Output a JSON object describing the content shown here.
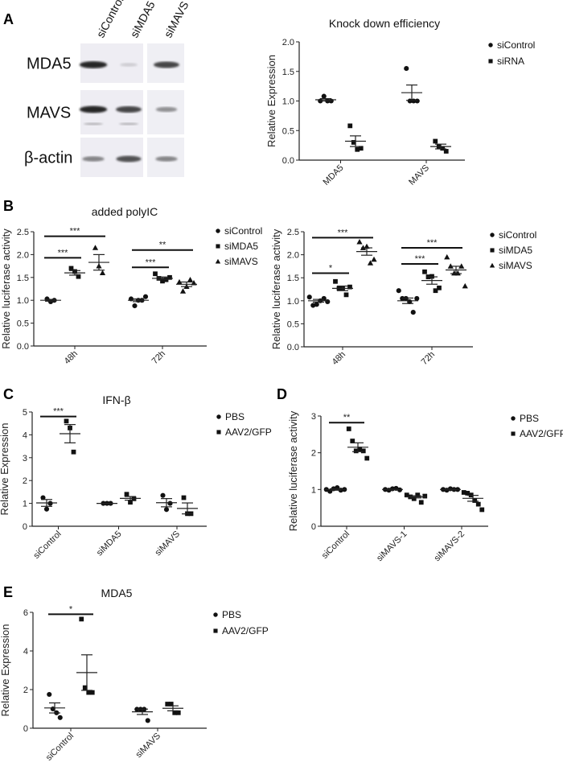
{
  "panels": [
    "A",
    "B",
    "C",
    "D",
    "E"
  ],
  "blot": {
    "lanes": [
      "siControl",
      "siMDA5",
      "siMAVS"
    ],
    "rows": [
      {
        "label": "MDA5",
        "intensity": [
          0.95,
          0.15,
          0.8
        ]
      },
      {
        "label": "MAVS",
        "intensity": [
          0.95,
          0.8,
          0.45
        ]
      },
      {
        "label": "β-actin",
        "intensity": [
          0.5,
          0.75,
          0.5
        ]
      }
    ]
  },
  "colors": {
    "marker": "#111111",
    "axis": "#222222",
    "band": "#1a1a1a"
  },
  "chart_data": [
    {
      "type": "scatter",
      "title": "Knock down efficiency",
      "xlabel": "",
      "ylabel": "Relative Expression",
      "ylim": [
        0,
        2
      ],
      "yticks": [
        "0.0",
        "0.5",
        "1.0",
        "1.5",
        "2.0"
      ],
      "ytick_values": [
        0,
        0.5,
        1,
        1.5,
        2
      ],
      "categories": [
        "MDA5",
        "MAVS"
      ],
      "legend": "right",
      "series": [
        {
          "name": "siControl",
          "marker": "circle",
          "values": [
            [
              1.0,
              1.08,
              1.0,
              1.0
            ],
            [
              1.55,
              1.0,
              1.0,
              1.0
            ]
          ],
          "mean": [
            1.02,
            1.14
          ],
          "sem": [
            0.02,
            0.13
          ]
        },
        {
          "name": "siRNA",
          "marker": "square",
          "values": [
            [
              0.58,
              0.3,
              0.18,
              0.2
            ],
            [
              0.32,
              0.23,
              0.2,
              0.15
            ]
          ],
          "mean": [
            0.32,
            0.23
          ],
          "sem": [
            0.09,
            0.04
          ]
        }
      ],
      "significance": []
    },
    {
      "type": "scatter",
      "title": "added polyIC",
      "xlabel": "",
      "ylabel": "Relative luciferase activity",
      "ylim": [
        0,
        2.5
      ],
      "yticks": [
        "0.0",
        "0.5",
        "1.0",
        "1.5",
        "2.0",
        "2.5"
      ],
      "ytick_values": [
        0,
        0.5,
        1,
        1.5,
        2,
        2.5
      ],
      "categories": [
        "48h",
        "72h"
      ],
      "legend": "right",
      "series": [
        {
          "name": "siControl",
          "marker": "circle",
          "values": [
            [
              1.03,
              0.97,
              1.0
            ],
            [
              1.03,
              0.88,
              1.0,
              1.0,
              1.08
            ]
          ],
          "mean": [
            1.0,
            1.0
          ],
          "sem": [
            0.02,
            0.03
          ]
        },
        {
          "name": "siMDA5",
          "marker": "square",
          "values": [
            [
              1.7,
              1.63,
              1.52
            ],
            [
              1.58,
              1.48,
              1.42,
              1.45,
              1.5
            ]
          ],
          "mean": [
            1.6,
            1.48
          ],
          "sem": [
            0.05,
            0.03
          ]
        },
        {
          "name": "siMAVS",
          "marker": "triangle",
          "values": [
            [
              2.15,
              1.75,
              1.6
            ],
            [
              1.4,
              1.2,
              1.3,
              1.45,
              1.38
            ]
          ],
          "mean": [
            1.83,
            1.35
          ],
          "sem": [
            0.17,
            0.05
          ]
        }
      ],
      "significance": [
        {
          "category": 0,
          "from": 0,
          "to": 1,
          "y": 1.93,
          "label": "***"
        },
        {
          "category": 0,
          "from": 0,
          "to": 2,
          "y": 2.4,
          "label": "***"
        },
        {
          "category": 1,
          "from": 0,
          "to": 1,
          "y": 1.72,
          "label": "***"
        },
        {
          "category": 1,
          "from": 0,
          "to": 2,
          "y": 2.1,
          "label": "**"
        }
      ]
    },
    {
      "type": "scatter",
      "title": "",
      "xlabel": "",
      "ylabel": "Relative luciferase activity",
      "ylim": [
        0,
        2.5
      ],
      "yticks": [
        "0.0",
        "0.5",
        "1.0",
        "1.5",
        "2.0",
        "2.5"
      ],
      "ytick_values": [
        0,
        0.5,
        1,
        1.5,
        2,
        2.5
      ],
      "categories": [
        "48h",
        "72h"
      ],
      "legend": "right",
      "series": [
        {
          "name": "siControl",
          "marker": "circle",
          "values": [
            [
              1.08,
              0.9,
              0.92,
              1.0,
              1.05,
              0.98
            ],
            [
              1.22,
              1.05,
              1.05,
              0.98,
              0.75,
              1.05
            ]
          ],
          "mean": [
            1.0,
            1.0
          ],
          "sem": [
            0.03,
            0.06
          ]
        },
        {
          "name": "siMDA5",
          "marker": "square",
          "values": [
            [
              1.42,
              1.27,
              1.27,
              1.13,
              1.3
            ],
            [
              1.63,
              1.52,
              1.53,
              1.22,
              1.28
            ]
          ],
          "mean": [
            1.27,
            1.44
          ],
          "sem": [
            0.05,
            0.08
          ]
        },
        {
          "name": "siMAVS",
          "marker": "triangle",
          "values": [
            [
              2.28,
              2.15,
              2.18,
              1.82,
              1.9
            ],
            [
              1.95,
              1.75,
              1.6,
              1.6,
              1.75,
              1.32
            ]
          ],
          "mean": [
            2.07,
            1.67
          ],
          "sem": [
            0.08,
            0.08
          ]
        }
      ],
      "significance": [
        {
          "category": 0,
          "from": 0,
          "to": 1,
          "y": 1.6,
          "label": "*"
        },
        {
          "category": 0,
          "from": 0,
          "to": 2,
          "y": 2.37,
          "label": "***"
        },
        {
          "category": 1,
          "from": 0,
          "to": 1,
          "y": 1.8,
          "label": "***"
        },
        {
          "category": 1,
          "from": 0,
          "to": 2,
          "y": 2.15,
          "label": "***"
        }
      ]
    },
    {
      "type": "scatter",
      "title": "IFN-β",
      "xlabel": "",
      "ylabel": "Relative Expression",
      "ylim": [
        0,
        5
      ],
      "yticks": [
        "0",
        "1",
        "2",
        "3",
        "4",
        "5"
      ],
      "ytick_values": [
        0,
        1,
        2,
        3,
        4,
        5
      ],
      "categories": [
        "siControl",
        "siMDA5",
        "siMAVS"
      ],
      "legend": "right",
      "series": [
        {
          "name": "PBS",
          "marker": "circle",
          "values": [
            [
              1.25,
              0.75,
              1.0
            ],
            [
              1.0,
              1.0,
              1.0
            ],
            [
              1.35,
              0.73,
              1.0
            ]
          ],
          "mean": [
            1.02,
            1.0,
            1.03
          ],
          "sem": [
            0.15,
            0.0,
            0.18
          ]
        },
        {
          "name": "AAV2/GFP",
          "marker": "square",
          "values": [
            [
              4.6,
              4.3,
              3.25
            ],
            [
              1.4,
              1.05,
              1.2
            ],
            [
              1.25,
              0.55,
              0.55
            ]
          ],
          "mean": [
            4.05,
            1.22,
            0.78
          ],
          "sem": [
            0.4,
            0.08,
            0.24
          ]
        }
      ],
      "significance": [
        {
          "category": 0,
          "from": 0,
          "to": 1,
          "y": 4.8,
          "label": "***"
        }
      ]
    },
    {
      "type": "scatter",
      "title": "",
      "xlabel": "",
      "ylabel": "Relative luciferase activity",
      "ylim": [
        0,
        3
      ],
      "yticks": [
        "0",
        "1",
        "2",
        "3"
      ],
      "ytick_values": [
        0,
        1,
        2,
        3
      ],
      "categories": [
        "siControl",
        "siMAVS-1",
        "siMAVS-2"
      ],
      "legend": "right",
      "series": [
        {
          "name": "PBS",
          "marker": "circle",
          "values": [
            [
              1.0,
              0.95,
              1.02,
              1.05,
              0.98,
              1.0
            ],
            [
              1.0,
              0.98,
              1.02,
              1.03,
              0.99
            ],
            [
              1.0,
              0.98,
              1.02,
              1.0,
              1.0
            ]
          ],
          "mean": [
            1.0,
            1.0,
            1.0
          ],
          "sem": [
            0.02,
            0.01,
            0.01
          ]
        },
        {
          "name": "AAV2/GFP",
          "marker": "square",
          "values": [
            [
              2.65,
              2.32,
              2.05,
              2.1,
              2.05,
              1.85
            ],
            [
              0.85,
              0.8,
              0.75,
              0.85,
              0.65,
              0.82
            ],
            [
              0.92,
              0.9,
              0.85,
              0.7,
              0.6,
              0.45
            ]
          ],
          "mean": [
            2.15,
            0.8,
            0.76
          ],
          "sem": [
            0.12,
            0.03,
            0.08
          ]
        }
      ],
      "significance": [
        {
          "category": 0,
          "from": 0,
          "to": 1,
          "y": 2.82,
          "label": "**"
        }
      ]
    },
    {
      "type": "scatter",
      "title": "MDA5",
      "xlabel": "",
      "ylabel": "Relative Expression",
      "ylim": [
        0,
        6
      ],
      "yticks": [
        "0",
        "2",
        "4",
        "6"
      ],
      "ytick_values": [
        0,
        2,
        4,
        6
      ],
      "categories": [
        "siControl",
        "siMAVS"
      ],
      "legend": "right",
      "series": [
        {
          "name": "PBS",
          "marker": "circle",
          "values": [
            [
              1.75,
              1.0,
              0.8,
              0.55
            ],
            [
              0.98,
              0.98,
              0.98,
              0.4
            ]
          ],
          "mean": [
            1.05,
            0.85
          ],
          "sem": [
            0.26,
            0.14
          ]
        },
        {
          "name": "AAV2/GFP",
          "marker": "square",
          "values": [
            [
              5.65,
              2.1,
              1.85,
              1.85
            ],
            [
              1.25,
              1.25,
              0.8,
              0.8
            ]
          ],
          "mean": [
            2.88,
            1.03
          ],
          "sem": [
            0.92,
            0.13
          ]
        }
      ],
      "significance": [
        {
          "category": 0,
          "from": 0,
          "to": 1,
          "y": 5.9,
          "label": "*"
        }
      ]
    }
  ]
}
